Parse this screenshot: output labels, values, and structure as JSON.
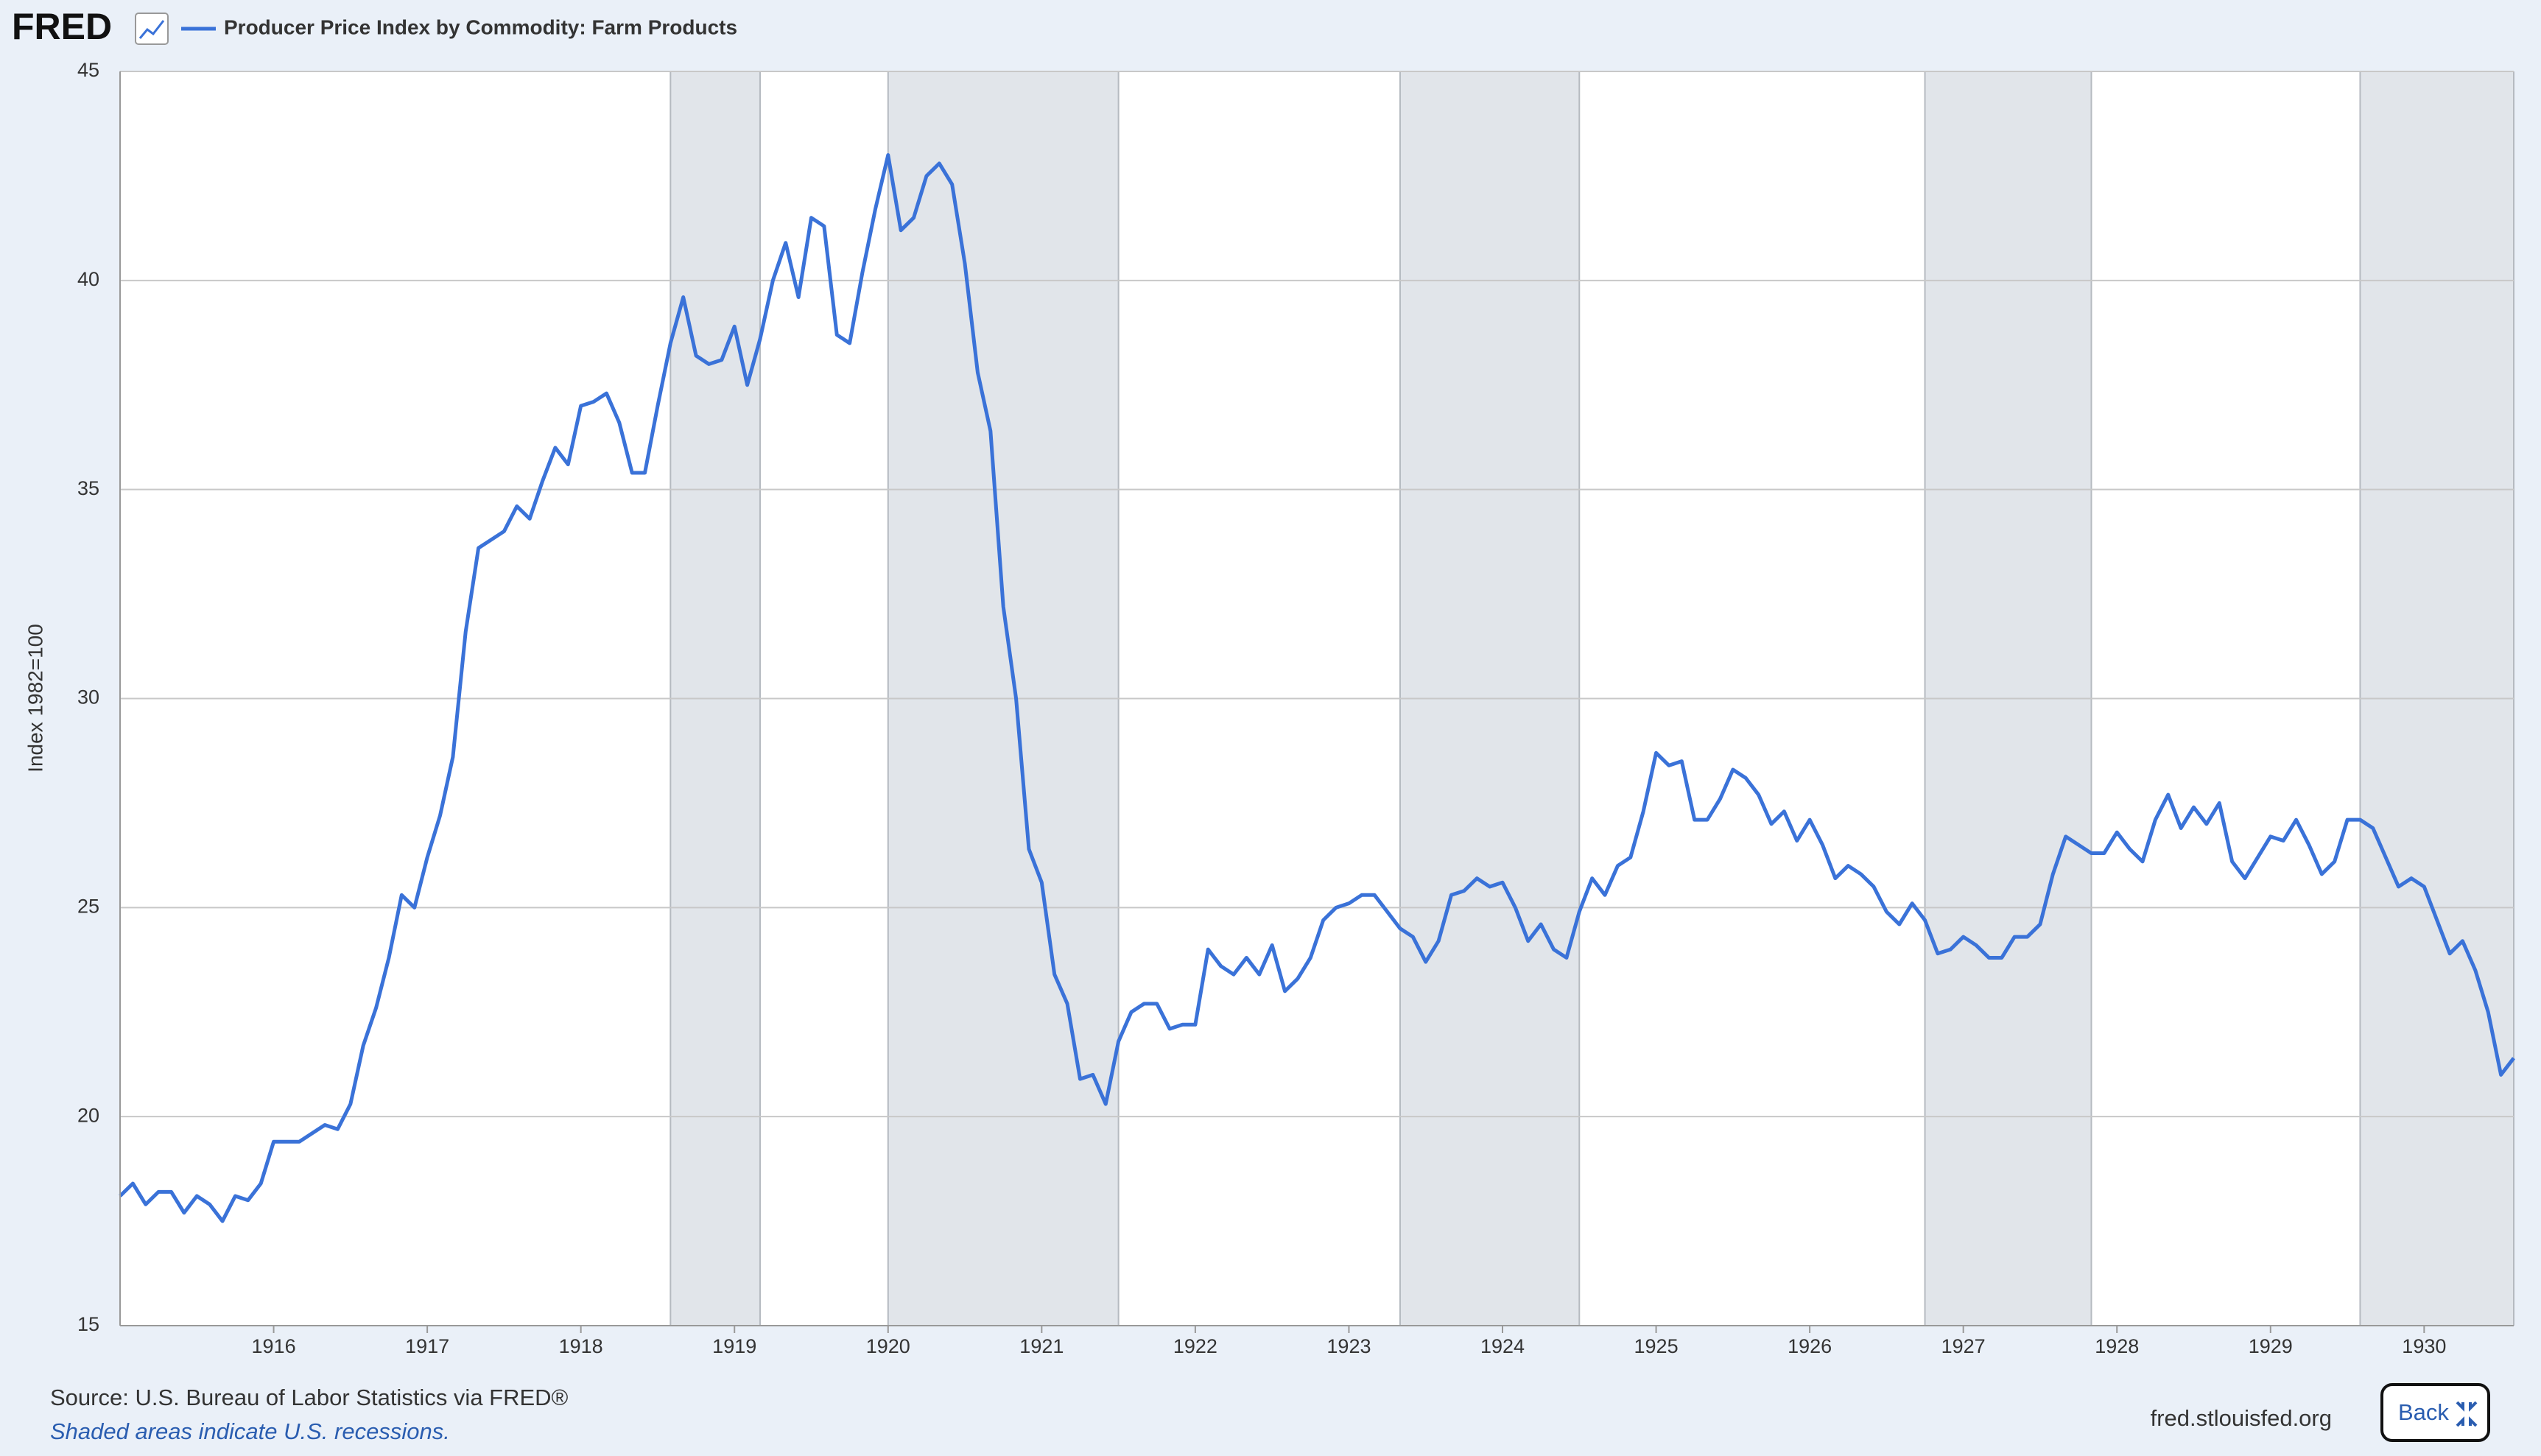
{
  "chart_data": {
    "type": "line",
    "logo": "FRED",
    "title": "Producer Price Index by Commodity: Farm Products",
    "y_label": "Index 1982=100",
    "source": "Source: U.S. Bureau of Labor Statistics via FRED®",
    "note": "Shaded areas indicate U.S. recessions.",
    "site": "fred.stlouisfed.org",
    "button": "Back",
    "x": [
      "1915-01",
      "1915-02",
      "1915-03",
      "1915-04",
      "1915-05",
      "1915-06",
      "1915-07",
      "1915-08",
      "1915-09",
      "1915-10",
      "1915-11",
      "1915-12",
      "1916-01",
      "1916-02",
      "1916-03",
      "1916-04",
      "1916-05",
      "1916-06",
      "1916-07",
      "1916-08",
      "1916-09",
      "1916-10",
      "1916-11",
      "1916-12",
      "1917-01",
      "1917-02",
      "1917-03",
      "1917-04",
      "1917-05",
      "1917-06",
      "1917-07",
      "1917-08",
      "1917-09",
      "1917-10",
      "1917-11",
      "1917-12",
      "1918-01",
      "1918-02",
      "1918-03",
      "1918-04",
      "1918-05",
      "1918-06",
      "1918-07",
      "1918-08",
      "1918-09",
      "1918-10",
      "1918-11",
      "1918-12",
      "1919-01",
      "1919-02",
      "1919-03",
      "1919-04",
      "1919-05",
      "1919-06",
      "1919-07",
      "1919-08",
      "1919-09",
      "1919-10",
      "1919-11",
      "1919-12",
      "1920-01",
      "1920-02",
      "1920-03",
      "1920-04",
      "1920-05",
      "1920-06",
      "1920-07",
      "1920-08",
      "1920-09",
      "1920-10",
      "1920-11",
      "1920-12",
      "1921-01",
      "1921-02",
      "1921-03",
      "1921-04",
      "1921-05",
      "1921-06",
      "1921-07",
      "1921-08",
      "1921-09",
      "1921-10",
      "1921-11",
      "1921-12",
      "1922-01",
      "1922-02",
      "1922-03",
      "1922-04",
      "1922-05",
      "1922-06",
      "1922-07",
      "1922-08",
      "1922-09",
      "1922-10",
      "1922-11",
      "1922-12",
      "1923-01",
      "1923-02",
      "1923-03",
      "1923-04",
      "1923-05",
      "1923-06",
      "1923-07",
      "1923-08",
      "1923-09",
      "1923-10",
      "1923-11",
      "1923-12",
      "1924-01",
      "1924-02",
      "1924-03",
      "1924-04",
      "1924-05",
      "1924-06",
      "1924-07",
      "1924-08",
      "1924-09",
      "1924-10",
      "1924-11",
      "1924-12",
      "1925-01",
      "1925-02",
      "1925-03",
      "1925-04",
      "1925-05",
      "1925-06",
      "1925-07",
      "1925-08",
      "1925-09",
      "1925-10",
      "1925-11",
      "1925-12",
      "1926-01",
      "1926-02",
      "1926-03",
      "1926-04",
      "1926-05",
      "1926-06",
      "1926-07",
      "1926-08",
      "1926-09",
      "1926-10",
      "1926-11",
      "1926-12",
      "1927-01",
      "1927-02",
      "1927-03",
      "1927-04",
      "1927-05",
      "1927-06",
      "1927-07",
      "1927-08",
      "1927-09",
      "1927-10",
      "1927-11",
      "1927-12",
      "1928-01",
      "1928-02",
      "1928-03",
      "1928-04",
      "1928-05",
      "1928-06",
      "1928-07",
      "1928-08",
      "1928-09",
      "1928-10",
      "1928-11",
      "1928-12",
      "1929-01",
      "1929-02",
      "1929-03",
      "1929-04",
      "1929-05",
      "1929-06",
      "1929-07",
      "1929-08",
      "1929-09",
      "1929-10",
      "1929-11",
      "1929-12",
      "1930-01",
      "1930-02",
      "1930-03",
      "1930-04",
      "1930-05",
      "1930-06",
      "1930-07",
      "1930-08"
    ],
    "series": [
      {
        "name": "Producer Price Index by Commodity: Farm Products",
        "color": "#3a72d8",
        "values": [
          18.1,
          18.4,
          17.9,
          18.2,
          18.2,
          17.7,
          18.1,
          17.9,
          17.5,
          18.1,
          18.0,
          18.4,
          19.4,
          19.4,
          19.4,
          19.6,
          19.8,
          19.7,
          20.3,
          21.7,
          22.6,
          23.8,
          25.3,
          25.0,
          26.2,
          27.2,
          28.6,
          31.6,
          33.6,
          33.8,
          34.0,
          34.6,
          34.3,
          35.2,
          36.0,
          35.6,
          37.0,
          37.1,
          37.3,
          36.6,
          35.4,
          35.4,
          37.0,
          38.5,
          39.6,
          38.2,
          38.0,
          38.1,
          38.9,
          37.5,
          38.6,
          40.0,
          40.9,
          39.6,
          41.5,
          41.3,
          38.7,
          38.5,
          40.2,
          41.7,
          43.0,
          41.2,
          41.5,
          42.5,
          42.8,
          42.3,
          40.4,
          37.8,
          36.4,
          32.2,
          30.0,
          26.4,
          25.6,
          23.4,
          22.7,
          20.9,
          21.0,
          20.3,
          21.8,
          22.5,
          22.7,
          22.7,
          22.1,
          22.2,
          22.2,
          24.0,
          23.6,
          23.4,
          23.8,
          23.4,
          24.1,
          23.0,
          23.3,
          23.8,
          24.7,
          25.0,
          25.1,
          25.3,
          25.3,
          24.9,
          24.5,
          24.3,
          23.7,
          24.2,
          25.3,
          25.4,
          25.7,
          25.5,
          25.6,
          25.0,
          24.2,
          24.6,
          24.0,
          23.8,
          24.9,
          25.7,
          25.3,
          26.0,
          26.2,
          27.3,
          28.7,
          28.4,
          28.5,
          27.1,
          27.1,
          27.6,
          28.3,
          28.1,
          27.7,
          27.0,
          27.3,
          26.6,
          27.1,
          26.5,
          25.7,
          26.0,
          25.8,
          25.5,
          24.9,
          24.6,
          25.1,
          24.7,
          23.9,
          24.0,
          24.3,
          24.1,
          23.8,
          23.8,
          24.3,
          24.3,
          24.6,
          25.8,
          26.7,
          26.5,
          26.3,
          26.3,
          26.8,
          26.4,
          26.1,
          27.1,
          27.7,
          26.9,
          27.4,
          27.0,
          27.5,
          26.1,
          25.7,
          26.2,
          26.7,
          26.6,
          27.1,
          26.5,
          25.8,
          26.1,
          27.1,
          27.1,
          26.9,
          26.2,
          25.5,
          25.7,
          25.5,
          24.7,
          23.9,
          24.2,
          23.5,
          22.5,
          21.0,
          21.4
        ]
      }
    ],
    "recessions": [
      [
        "1918-08",
        "1919-03"
      ],
      [
        "1920-01",
        "1921-07"
      ],
      [
        "1923-05",
        "1924-07"
      ],
      [
        "1926-10",
        "1927-11"
      ],
      [
        "1929-08",
        "1930-08"
      ]
    ],
    "recession_color": "#e1e5ea",
    "xlim": [
      "1915-01",
      "1930-08"
    ],
    "xticks": [
      {
        "value": "1916-01",
        "label": "1916"
      },
      {
        "value": "1917-01",
        "label": "1917"
      },
      {
        "value": "1918-01",
        "label": "1918"
      },
      {
        "value": "1919-01",
        "label": "1919"
      },
      {
        "value": "1920-01",
        "label": "1920"
      },
      {
        "value": "1921-01",
        "label": "1921"
      },
      {
        "value": "1922-01",
        "label": "1922"
      },
      {
        "value": "1923-01",
        "label": "1923"
      },
      {
        "value": "1924-01",
        "label": "1924"
      },
      {
        "value": "1925-01",
        "label": "1925"
      },
      {
        "value": "1926-01",
        "label": "1926"
      },
      {
        "value": "1927-01",
        "label": "1927"
      },
      {
        "value": "1928-01",
        "label": "1928"
      },
      {
        "value": "1929-01",
        "label": "1929"
      },
      {
        "value": "1930-01",
        "label": "1930"
      }
    ],
    "ylim": [
      15,
      45
    ],
    "yticks": [
      15,
      20,
      25,
      30,
      35,
      40,
      45
    ],
    "grid": true
  }
}
